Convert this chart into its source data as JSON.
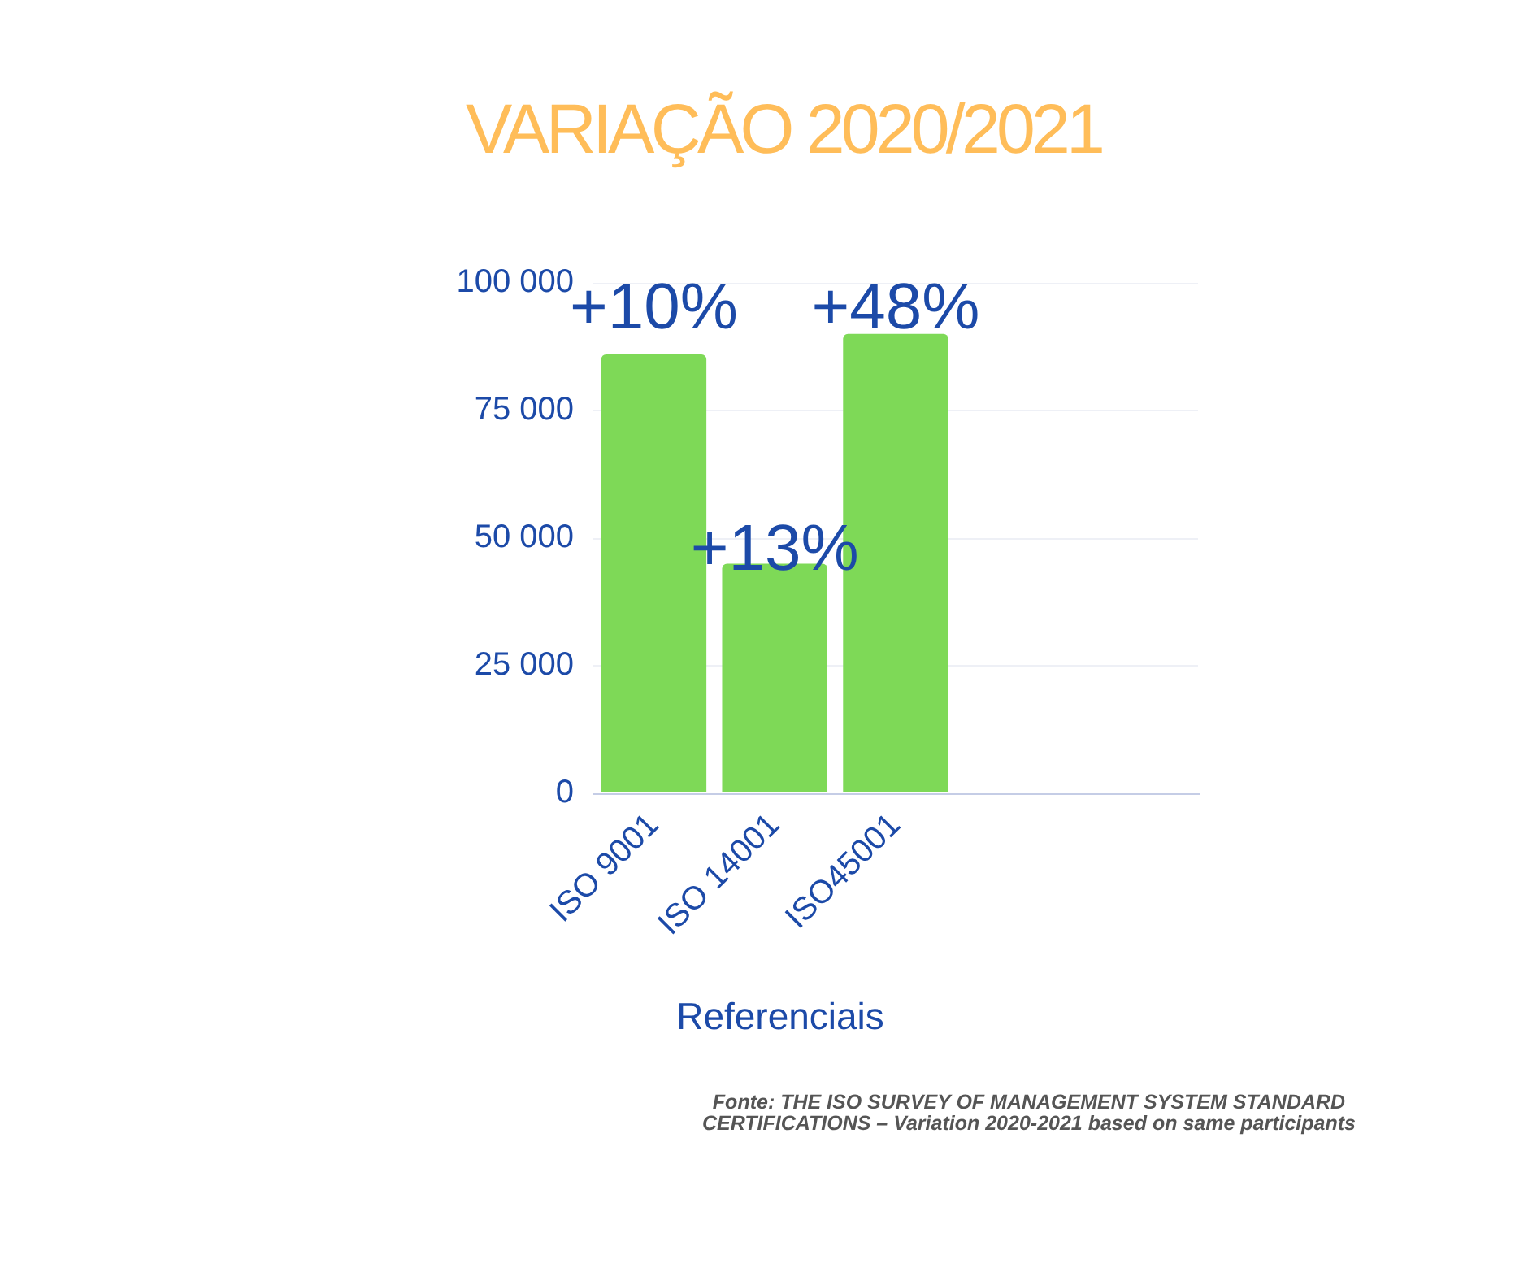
{
  "chart_data": {
    "type": "bar",
    "title": "VARIAÇÃO 2020/2021",
    "xlabel": "Referenciais",
    "categories": [
      "ISO 9001",
      "ISO 14001",
      "ISO45001",
      null,
      null
    ],
    "values": [
      86000,
      45000,
      90000,
      null,
      null
    ],
    "color": "#7ed957",
    "ylim": [
      0,
      100000
    ],
    "yticks": [
      0,
      {
        "value": 25000,
        "label": "25 000"
      },
      {
        "value": 50000,
        "label": "50 000"
      },
      {
        "value": 75000,
        "label": "75 000"
      },
      {
        "value": 100000,
        "label": "100 000"
      }
    ],
    "grid": "y",
    "annotations": [
      {
        "text": "+10%",
        "x": "ISO 9001",
        "y": 86000
      },
      {
        "text": "+13%",
        "x": "ISO 14001",
        "y": 45000
      },
      {
        "text": "+48%",
        "x": "ISO45001",
        "y": 90000
      },
      "Fonte: THE ISO SURVEY OF MANAGEMENT SYSTEM STANDARD CERTIFICATIONS – Variation 2020-2021 based on same participants"
    ]
  }
}
